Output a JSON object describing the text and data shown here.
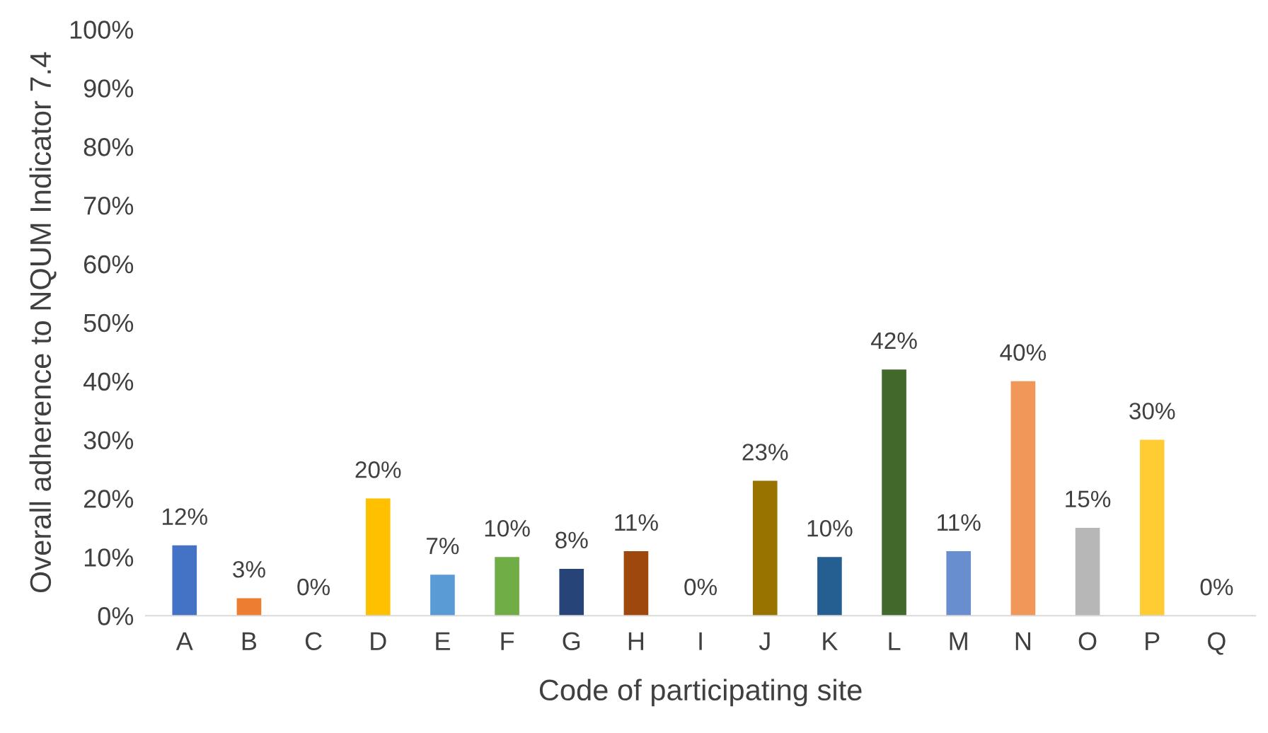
{
  "chart_data": {
    "type": "bar",
    "xlabel": "Code of participating site",
    "ylabel": "Overall adherence to NQUM Indicator 7.4",
    "categories": [
      "A",
      "B",
      "C",
      "D",
      "E",
      "F",
      "G",
      "H",
      "I",
      "J",
      "K",
      "L",
      "M",
      "N",
      "O",
      "P",
      "Q"
    ],
    "values": [
      12,
      3,
      0,
      20,
      7,
      10,
      8,
      11,
      0,
      23,
      10,
      42,
      11,
      40,
      15,
      30,
      0
    ],
    "colors": [
      "#4472c4",
      "#ed7d31",
      "#a5a5a5",
      "#ffc000",
      "#5b9bd5",
      "#70ad47",
      "#264478",
      "#9e480e",
      "#636363",
      "#997300",
      "#255e91",
      "#43682b",
      "#698ed0",
      "#f1975a",
      "#b7b7b7",
      "#ffcd33",
      "#4a7ebb"
    ],
    "value_labels": [
      "12%",
      "3%",
      "0%",
      "20%",
      "7%",
      "10%",
      "8%",
      "11%",
      "0%",
      "23%",
      "10%",
      "42%",
      "11%",
      "40%",
      "15%",
      "30%",
      "0%"
    ],
    "ylim": [
      0,
      100
    ],
    "yticks": [
      {
        "value": 0,
        "label": "0%"
      },
      {
        "value": 10,
        "label": "10%"
      },
      {
        "value": 20,
        "label": "20%"
      },
      {
        "value": 30,
        "label": "30%"
      },
      {
        "value": 40,
        "label": "40%"
      },
      {
        "value": 50,
        "label": "50%"
      },
      {
        "value": 60,
        "label": "60%"
      },
      {
        "value": 70,
        "label": "70%"
      },
      {
        "value": 80,
        "label": "80%"
      },
      {
        "value": 90,
        "label": "90%"
      },
      {
        "value": 100,
        "label": "100%"
      }
    ],
    "grid": false,
    "legend": false
  }
}
